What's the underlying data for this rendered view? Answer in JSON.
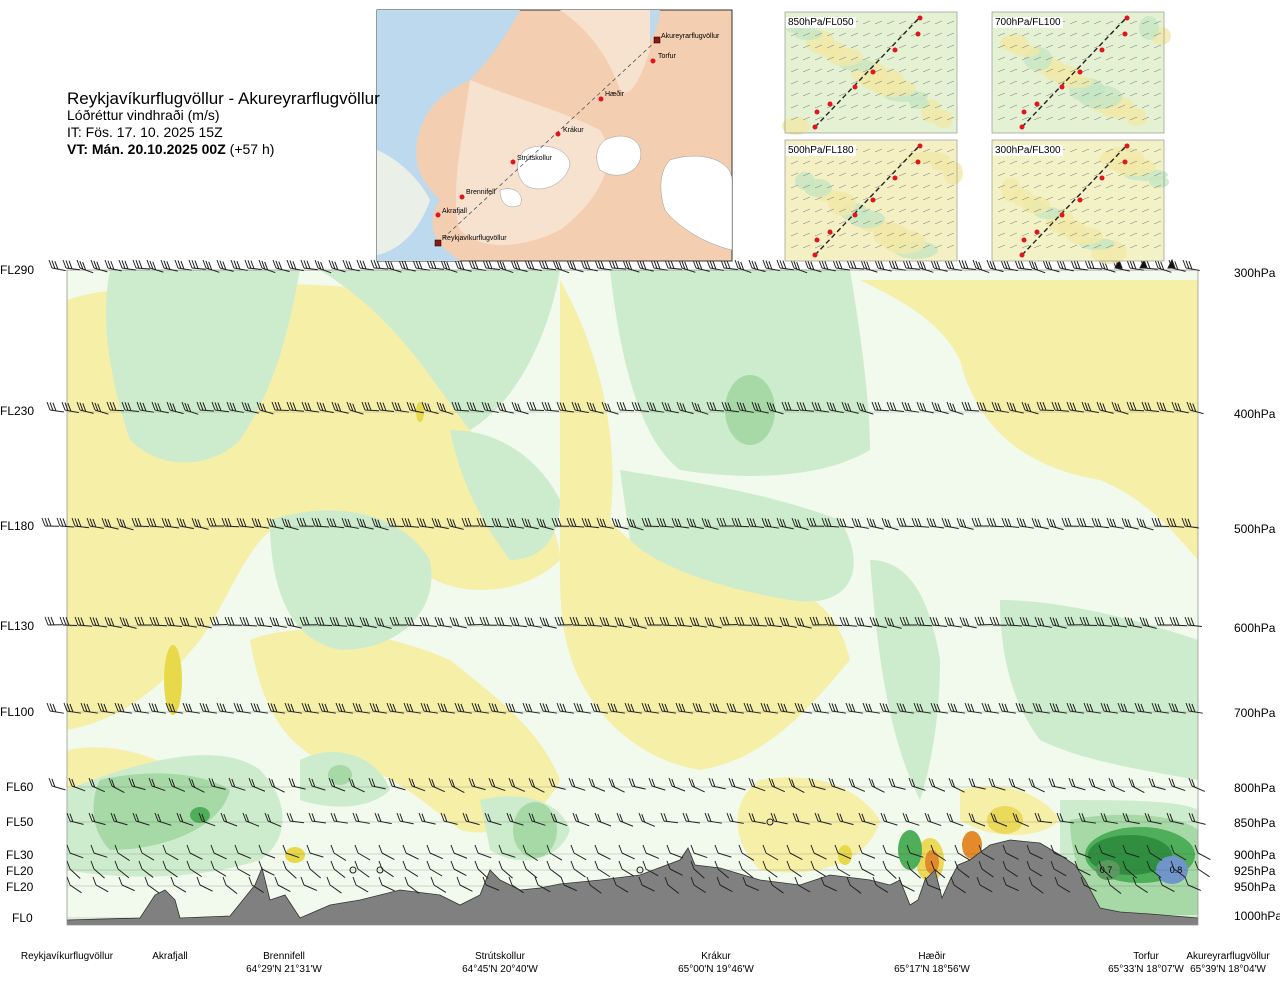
{
  "header": {
    "route": "Reykjavíkurflugvöllur - Akureyrarflugvöllur",
    "parameter": "Lóðréttur vindhraði (m/s)",
    "issue_time": "IT: Fös. 17. 10. 2025 15Z",
    "valid_time": "VT: Mán. 20.10.2025 00Z",
    "lead_time": "(+57 h)"
  },
  "map": {
    "waypoints": [
      "Akureyrarflugvöllur",
      "Torfur",
      "Hæðir",
      "Krákur",
      "Strútskollur",
      "Brennifell",
      "Akrafjall",
      "Reykjavíkurflugvöllur"
    ]
  },
  "level_panels": [
    {
      "label": "850hPa/FL050"
    },
    {
      "label": "700hPa/FL100"
    },
    {
      "label": "500hPa/FL180"
    },
    {
      "label": "300hPa/FL300"
    }
  ],
  "flight_levels": [
    "FL290",
    "FL230",
    "FL180",
    "FL130",
    "FL100",
    "FL60",
    "FL50",
    "FL30",
    "FL20",
    "FL20",
    "FL0"
  ],
  "pressure_levels": [
    "300hPa",
    "400hPa",
    "500hPa",
    "600hPa",
    "700hPa",
    "800hPa",
    "850hPa",
    "900hPa",
    "925hPa",
    "950hPa",
    "1000hPa"
  ],
  "route_points": [
    {
      "name": "Reykjavíkurflugvöllur",
      "coords": ""
    },
    {
      "name": "Akrafjall",
      "coords": ""
    },
    {
      "name": "Brennifell",
      "coords": "64°29'N 21°31'W"
    },
    {
      "name": "Strútskollur",
      "coords": "64°45'N 20°40'W"
    },
    {
      "name": "Krákur",
      "coords": "65°00'N 19°46'W"
    },
    {
      "name": "Hæðir",
      "coords": "65°17'N 18°56'W"
    },
    {
      "name": "Torfur",
      "coords": "65°33'N 18°07'W"
    },
    {
      "name": "Akureyrarflugvöllur",
      "coords": "65°39'N 18°04'W"
    }
  ],
  "annotations": [
    "0.7",
    "0.8"
  ],
  "colors": {
    "neg_light": "#cdeccd",
    "neg_mid": "#a6d9a6",
    "neg_dark": "#4fae5a",
    "pos_light": "#f6efa8",
    "pos_mid": "#ebd95a",
    "pos_strong": "#e38a2a",
    "neutral": "#f1faec",
    "terrain": "#808080",
    "blue_cell": "#6f95c9"
  }
}
